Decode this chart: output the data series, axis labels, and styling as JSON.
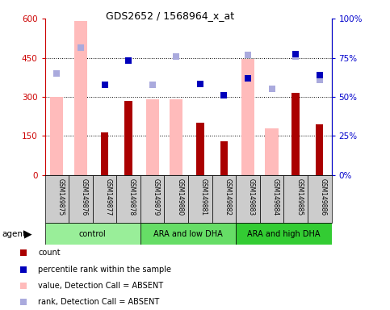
{
  "title": "GDS2652 / 1568964_x_at",
  "samples": [
    "GSM149875",
    "GSM149876",
    "GSM149877",
    "GSM149878",
    "GSM149879",
    "GSM149880",
    "GSM149881",
    "GSM149882",
    "GSM149883",
    "GSM149884",
    "GSM149885",
    "GSM149886"
  ],
  "groups": [
    {
      "label": "control",
      "color": "#99ee99",
      "start": 0,
      "end": 3
    },
    {
      "label": "ARA and low DHA",
      "color": "#66dd66",
      "start": 4,
      "end": 7
    },
    {
      "label": "ARA and high DHA",
      "color": "#33cc33",
      "start": 8,
      "end": 11
    }
  ],
  "bar_value_absent": [
    300,
    590,
    null,
    null,
    290,
    290,
    null,
    null,
    445,
    180,
    null,
    null
  ],
  "bar_count_absent": [
    null,
    null,
    165,
    285,
    null,
    null,
    200,
    130,
    null,
    null,
    315,
    195
  ],
  "rank_absent": [
    390,
    490,
    null,
    null,
    345,
    455,
    null,
    null,
    null,
    null,
    455,
    null
  ],
  "rank_present": [
    null,
    null,
    null,
    null,
    null,
    null,
    null,
    null,
    460,
    330,
    null,
    365
  ],
  "pct_absent": [
    null,
    null,
    345,
    440,
    null,
    null,
    350,
    305,
    null,
    null,
    null,
    null
  ],
  "pct_present": [
    null,
    null,
    null,
    null,
    null,
    null,
    null,
    null,
    370,
    null,
    465,
    385
  ],
  "ylim": [
    0,
    600
  ],
  "yticks": [
    0,
    150,
    300,
    450,
    600
  ],
  "ytick_labels_left": [
    "0",
    "150",
    "300",
    "450",
    "600"
  ],
  "ytick_labels_right": [
    "0%",
    "25%",
    "50%",
    "75%",
    "100%"
  ],
  "color_bar_absent": "#ffbbbb",
  "color_bar_count": "#aa0000",
  "color_rank_absent": "#aaaadd",
  "color_pct_dark": "#0000bb",
  "bg_color": "#ffffff",
  "ytick_color_left": "#cc0000",
  "ytick_color_right": "#0000cc"
}
